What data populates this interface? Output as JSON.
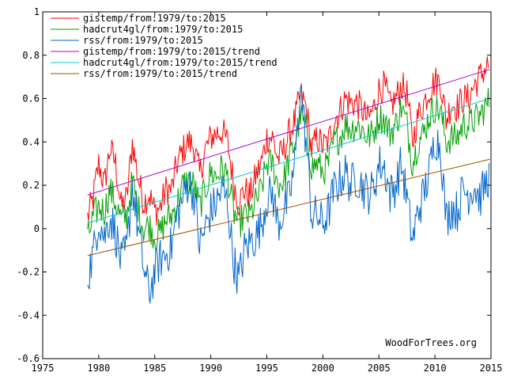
{
  "chart_data": {
    "type": "line",
    "title": "",
    "xlabel": "",
    "ylabel": "",
    "xlim": [
      1975,
      2015
    ],
    "ylim": [
      -0.6,
      1.0
    ],
    "x_ticks": [
      1975,
      1980,
      1985,
      1990,
      1995,
      2000,
      2005,
      2010,
      2015
    ],
    "y_ticks": [
      -0.6,
      -0.4,
      -0.2,
      0,
      0.2,
      0.4,
      0.6,
      0.8,
      1
    ],
    "y_tick_labels": [
      "-0.6",
      "-0.4",
      "-0.2",
      "0",
      "0.2",
      "0.4",
      "0.6",
      "0.8",
      "1"
    ],
    "grid": false,
    "legend_position": "top-left",
    "credit": "WoodForTrees.org",
    "series": [
      {
        "name": "gistemp/from:1979/to:2015",
        "color": "#ff0000",
        "kind": "monthly",
        "x": [
          1979.0,
          1979.5,
          1980.0,
          1980.5,
          1981.0,
          1981.5,
          1982.0,
          1982.5,
          1983.0,
          1983.5,
          1984.0,
          1984.5,
          1985.0,
          1985.5,
          1986.0,
          1986.5,
          1987.0,
          1987.5,
          1988.0,
          1988.5,
          1989.0,
          1989.5,
          1990.0,
          1990.5,
          1991.0,
          1991.5,
          1992.0,
          1992.5,
          1993.0,
          1993.5,
          1994.0,
          1994.5,
          1995.0,
          1995.5,
          1996.0,
          1996.5,
          1997.0,
          1997.5,
          1998.0,
          1998.5,
          1999.0,
          1999.5,
          2000.0,
          2000.5,
          2001.0,
          2001.5,
          2002.0,
          2002.5,
          2003.0,
          2003.5,
          2004.0,
          2004.5,
          2005.0,
          2005.5,
          2006.0,
          2006.5,
          2007.0,
          2007.5,
          2008.0,
          2008.5,
          2009.0,
          2009.5,
          2010.0,
          2010.5,
          2011.0,
          2011.5,
          2012.0,
          2012.5,
          2013.0,
          2013.5,
          2014.0,
          2014.5,
          2014.9
        ],
        "y": [
          0.05,
          0.14,
          0.3,
          0.2,
          0.37,
          0.3,
          0.1,
          0.14,
          0.4,
          0.24,
          0.12,
          0.16,
          0.08,
          0.1,
          0.18,
          0.18,
          0.3,
          0.36,
          0.4,
          0.38,
          0.25,
          0.36,
          0.42,
          0.44,
          0.45,
          0.4,
          0.22,
          0.12,
          0.18,
          0.15,
          0.24,
          0.3,
          0.42,
          0.42,
          0.32,
          0.36,
          0.44,
          0.5,
          0.62,
          0.56,
          0.36,
          0.42,
          0.38,
          0.4,
          0.5,
          0.54,
          0.6,
          0.58,
          0.58,
          0.55,
          0.5,
          0.55,
          0.64,
          0.66,
          0.56,
          0.6,
          0.66,
          0.62,
          0.4,
          0.52,
          0.58,
          0.64,
          0.68,
          0.68,
          0.5,
          0.58,
          0.56,
          0.6,
          0.6,
          0.66,
          0.7,
          0.74,
          0.76
        ]
      },
      {
        "name": "hadcrut4gl/from:1979/to:2015",
        "color": "#00a000",
        "kind": "monthly",
        "x": [
          1979.0,
          1979.5,
          1980.0,
          1980.5,
          1981.0,
          1981.5,
          1982.0,
          1982.5,
          1983.0,
          1983.5,
          1984.0,
          1984.5,
          1985.0,
          1985.5,
          1986.0,
          1986.5,
          1987.0,
          1987.5,
          1988.0,
          1988.5,
          1989.0,
          1989.5,
          1990.0,
          1990.5,
          1991.0,
          1991.5,
          1992.0,
          1992.5,
          1993.0,
          1993.5,
          1994.0,
          1994.5,
          1995.0,
          1995.5,
          1996.0,
          1996.5,
          1997.0,
          1997.5,
          1998.0,
          1998.5,
          1999.0,
          1999.5,
          2000.0,
          2000.5,
          2001.0,
          2001.5,
          2002.0,
          2002.5,
          2003.0,
          2003.5,
          2004.0,
          2004.5,
          2005.0,
          2005.5,
          2006.0,
          2006.5,
          2007.0,
          2007.5,
          2008.0,
          2008.5,
          2009.0,
          2009.5,
          2010.0,
          2010.5,
          2011.0,
          2011.5,
          2012.0,
          2012.5,
          2013.0,
          2013.5,
          2014.0,
          2014.5,
          2014.9
        ],
        "y": [
          -0.05,
          0.05,
          0.1,
          0.08,
          0.18,
          0.12,
          0.04,
          0.06,
          0.22,
          0.1,
          0.0,
          0.02,
          -0.04,
          -0.02,
          0.04,
          0.06,
          0.12,
          0.2,
          0.22,
          0.2,
          0.1,
          0.18,
          0.26,
          0.24,
          0.28,
          0.24,
          0.08,
          0.02,
          0.06,
          0.06,
          0.12,
          0.18,
          0.3,
          0.3,
          0.2,
          0.22,
          0.32,
          0.4,
          0.52,
          0.46,
          0.28,
          0.3,
          0.26,
          0.3,
          0.4,
          0.42,
          0.48,
          0.46,
          0.48,
          0.46,
          0.42,
          0.44,
          0.52,
          0.5,
          0.44,
          0.48,
          0.56,
          0.48,
          0.3,
          0.4,
          0.44,
          0.52,
          0.56,
          0.54,
          0.4,
          0.42,
          0.42,
          0.48,
          0.48,
          0.5,
          0.52,
          0.56,
          0.6
        ]
      },
      {
        "name": "rss/from:1979/to:2015",
        "color": "#0066cc",
        "kind": "monthly",
        "x": [
          1979.0,
          1979.5,
          1980.0,
          1980.5,
          1981.0,
          1981.5,
          1982.0,
          1982.5,
          1983.0,
          1983.5,
          1984.0,
          1984.5,
          1985.0,
          1985.5,
          1986.0,
          1986.5,
          1987.0,
          1987.5,
          1988.0,
          1988.5,
          1989.0,
          1989.5,
          1990.0,
          1990.5,
          1991.0,
          1991.5,
          1992.0,
          1992.5,
          1993.0,
          1993.5,
          1994.0,
          1994.5,
          1995.0,
          1995.5,
          1996.0,
          1996.5,
          1997.0,
          1997.5,
          1998.0,
          1998.5,
          1999.0,
          1999.5,
          2000.0,
          2000.5,
          2001.0,
          2001.5,
          2002.0,
          2002.5,
          2003.0,
          2003.5,
          2004.0,
          2004.5,
          2005.0,
          2005.5,
          2006.0,
          2006.5,
          2007.0,
          2007.5,
          2008.0,
          2008.5,
          2009.0,
          2009.5,
          2010.0,
          2010.5,
          2011.0,
          2011.5,
          2012.0,
          2012.5,
          2013.0,
          2013.5,
          2014.0,
          2014.5,
          2014.9
        ],
        "y": [
          -0.22,
          -0.12,
          0.05,
          -0.04,
          0.06,
          -0.02,
          -0.16,
          -0.1,
          0.2,
          0.0,
          -0.18,
          -0.3,
          -0.2,
          -0.14,
          -0.12,
          -0.08,
          0.06,
          0.14,
          0.22,
          0.16,
          -0.08,
          0.0,
          0.08,
          0.12,
          0.18,
          0.12,
          -0.14,
          -0.24,
          -0.1,
          -0.06,
          -0.04,
          0.02,
          0.14,
          0.16,
          0.02,
          0.08,
          0.14,
          0.3,
          0.66,
          0.4,
          0.06,
          0.06,
          0.02,
          0.08,
          0.18,
          0.22,
          0.26,
          0.2,
          0.24,
          0.2,
          0.16,
          0.18,
          0.3,
          0.28,
          0.16,
          0.2,
          0.3,
          0.14,
          -0.06,
          0.08,
          0.16,
          0.26,
          0.42,
          0.38,
          0.04,
          0.1,
          0.08,
          0.18,
          0.16,
          0.2,
          0.14,
          0.2,
          0.26
        ]
      },
      {
        "name": "gistemp/from:1979/to:2015/trend",
        "color": "#b000d0",
        "kind": "trend",
        "x": [
          1979.0,
          2014.9
        ],
        "y": [
          0.155,
          0.735
        ]
      },
      {
        "name": "hadcrut4gl/from:1979/to:2015/trend",
        "color": "#00cccc",
        "kind": "trend",
        "x": [
          1979.0,
          2014.9
        ],
        "y": [
          0.025,
          0.6
        ]
      },
      {
        "name": "rss/from:1979/to:2015/trend",
        "color": "#a05000",
        "kind": "trend",
        "x": [
          1979.0,
          2014.9
        ],
        "y": [
          -0.125,
          0.32
        ]
      }
    ]
  }
}
